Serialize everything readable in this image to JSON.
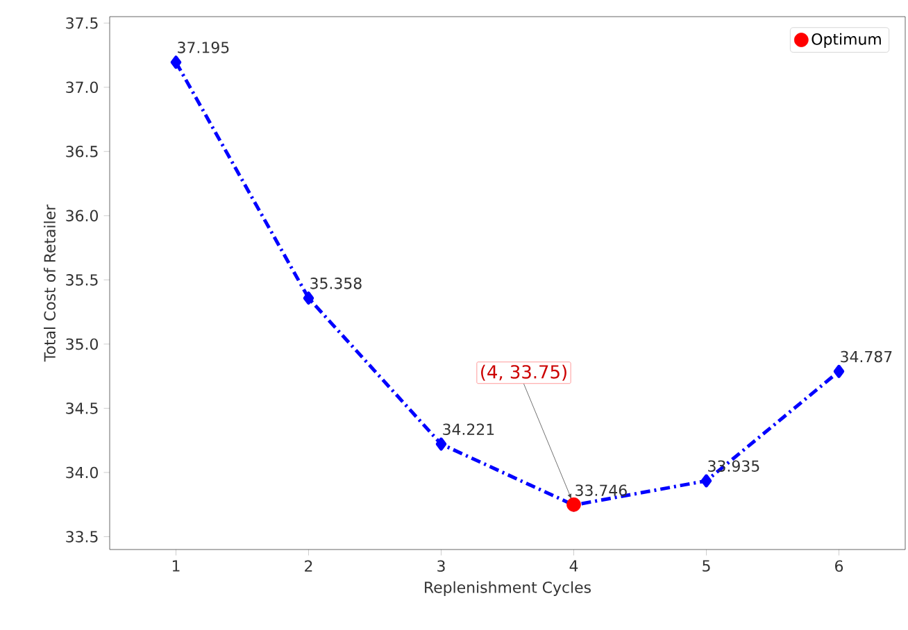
{
  "chart_data": {
    "type": "line",
    "xlabel": "Replenishment Cycles",
    "ylabel": "Total Cost of Retailer",
    "x": [
      1,
      2,
      3,
      4,
      5,
      6
    ],
    "series": [
      {
        "color": "#0000ff",
        "marker": "diamond",
        "line_style": "dashed",
        "values": [
          37.195,
          35.358,
          34.221,
          33.746,
          33.935,
          34.787
        ],
        "value_labels": [
          "37.195",
          "35.358",
          "34.221",
          "33.746",
          "33.935",
          "34.787"
        ]
      },
      {
        "type": "scatter",
        "name": "Optimum",
        "color": "#ff0000",
        "marker": "circle",
        "x": [
          4
        ],
        "values": [
          33.75
        ]
      }
    ],
    "annotations": [
      {
        "text": "(4, 33.75)",
        "x": 4,
        "y": 33.75
      }
    ],
    "xlim": [
      0.5,
      6.5
    ],
    "ylim": [
      33.4,
      37.55
    ],
    "xticks": [
      1,
      2,
      3,
      4,
      5,
      6
    ],
    "yticks": [
      33.5,
      {
        "value": 34,
        "label": "34.0"
      },
      34.5,
      {
        "value": 35,
        "label": "35.0"
      },
      35.5,
      {
        "value": 36,
        "label": "36.0"
      },
      36.5,
      {
        "value": 37,
        "label": "37.0"
      },
      37.5
    ],
    "legend": "top right",
    "grid": false
  }
}
